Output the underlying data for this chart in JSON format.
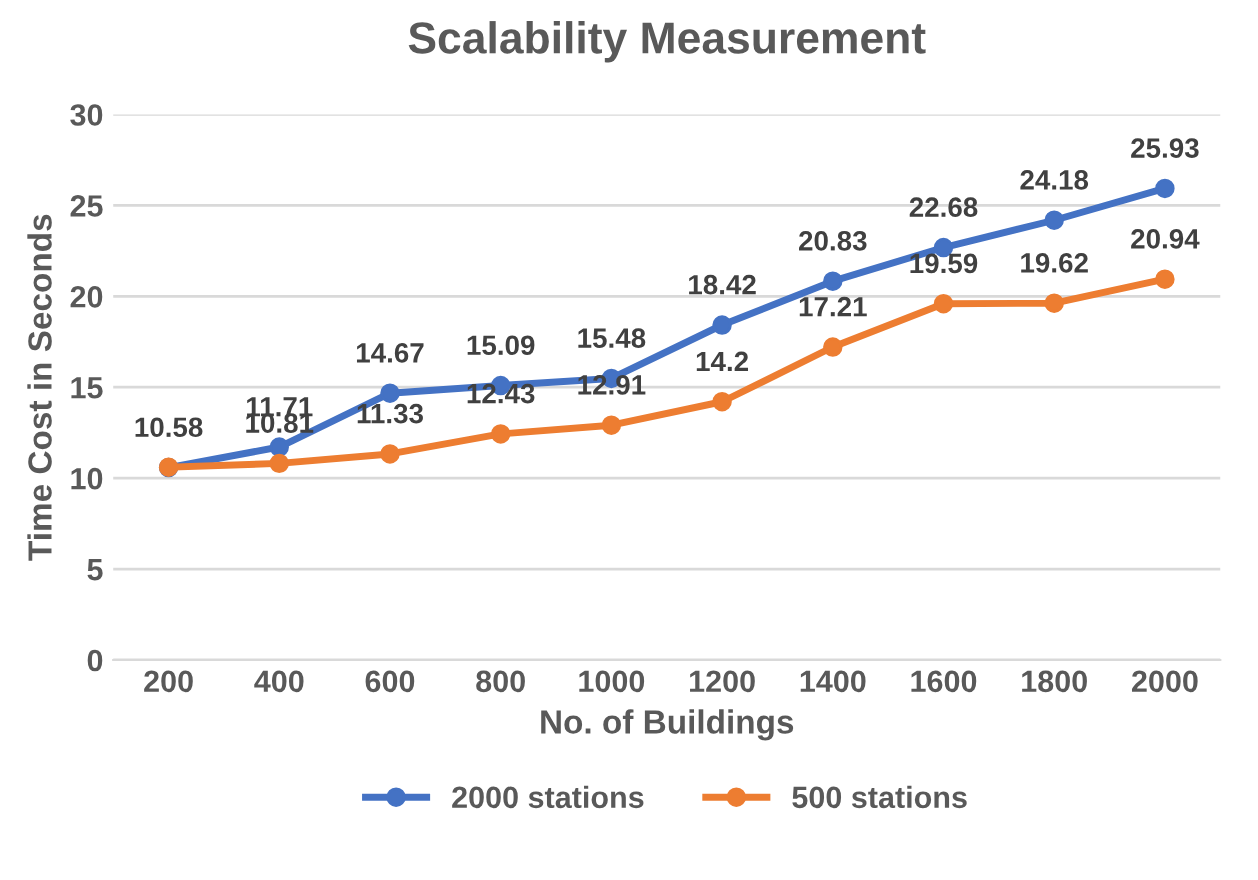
{
  "chart_data": {
    "type": "line",
    "title": "Scalability Measurement",
    "xlabel": "No. of Buildings",
    "ylabel": "Time Cost in Seconds",
    "categories": [
      "200",
      "400",
      "600",
      "800",
      "1000",
      "1200",
      "1400",
      "1600",
      "1800",
      "2000"
    ],
    "series": [
      {
        "name": "2000 stations",
        "color": "#4472c4",
        "values": [
          10.58,
          11.71,
          14.67,
          15.09,
          15.48,
          18.42,
          20.83,
          22.68,
          24.18,
          25.93
        ],
        "value_labels": [
          "10.58",
          "11.71",
          "14.67",
          "15.09",
          "15.48",
          "18.42",
          "20.83",
          "22.68",
          "24.18",
          "25.93"
        ]
      },
      {
        "name": "500 stations",
        "color": "#ed7d31",
        "values": [
          10.6,
          10.81,
          11.33,
          12.43,
          12.91,
          14.2,
          17.21,
          19.59,
          19.62,
          20.94
        ],
        "value_labels": [
          null,
          "10.81",
          "11.33",
          "12.43",
          "12.91",
          "14.2",
          "17.21",
          "19.59",
          "19.62",
          "20.94"
        ]
      }
    ],
    "ylim": [
      0,
      30
    ],
    "yticks": [
      0,
      5,
      10,
      15,
      20,
      25,
      30
    ],
    "grid": "y",
    "legend": "bottom",
    "marker": "circle",
    "line_style": "solid"
  }
}
